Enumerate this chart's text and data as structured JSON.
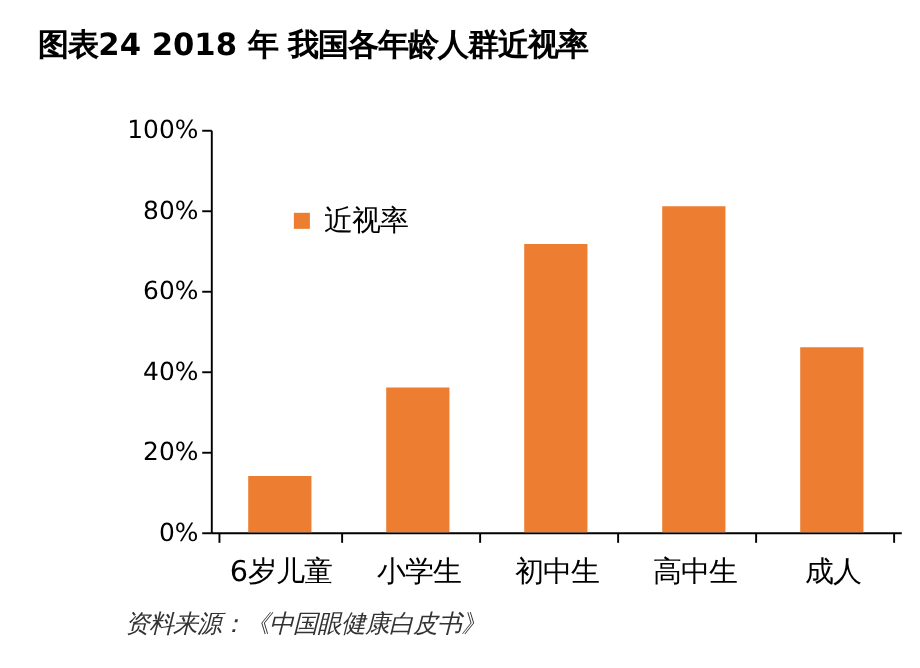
{
  "chart_data": {
    "type": "bar",
    "title": "图表24    2018 年 我国各年龄人群近视率",
    "categories": [
      "6岁儿童",
      "小学生",
      "初中生",
      "高中生",
      "成人"
    ],
    "series": [
      {
        "name": "近视率",
        "color": "#ed7d31",
        "values": [
          14,
          36,
          71.6,
          81,
          46
        ]
      }
    ],
    "ylim": [
      0,
      100
    ],
    "yticks": [
      {
        "value": 0,
        "label": "0%"
      },
      {
        "value": 20,
        "label": "20%"
      },
      {
        "value": 40,
        "label": "40%"
      },
      {
        "value": 60,
        "label": "60%"
      },
      {
        "value": 80,
        "label": "80%"
      },
      {
        "value": 100,
        "label": "100%"
      }
    ],
    "grid": false,
    "legend": "top left",
    "annotations": [
      "资料来源：《中国眼健康白皮书》"
    ]
  }
}
